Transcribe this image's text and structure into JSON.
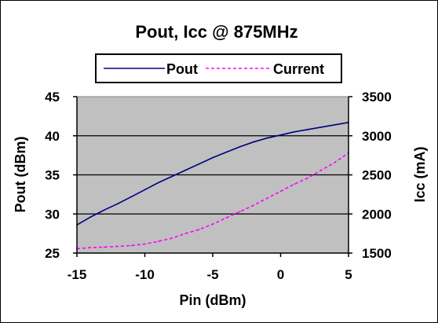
{
  "chart_data": {
    "type": "line",
    "title": "Pout, Icc @ 875MHz",
    "xlabel": "Pin  (dBm)",
    "ylabel": "Pout (dBm)",
    "y2label": "Icc (mA)",
    "xlim": [
      -15,
      5
    ],
    "ylim": [
      25,
      45
    ],
    "y2lim": [
      1500,
      3500
    ],
    "xticks": [
      "-15",
      "-10",
      "-5",
      "0",
      "5"
    ],
    "yticks": [
      "45",
      "40",
      "35",
      "30",
      "25"
    ],
    "y2ticks": [
      "3500",
      "3000",
      "2500",
      "2000",
      "1500"
    ],
    "grid": "horizontal",
    "legend_position": "top-center",
    "plot_background": "#c0c0c0",
    "series": [
      {
        "name": "Pout",
        "axis": "left",
        "color": "#000080",
        "style": "solid",
        "x": [
          -15,
          -14,
          -13,
          -12,
          -11,
          -10,
          -9,
          -8,
          -7,
          -6,
          -5,
          -4,
          -3,
          -2,
          -1,
          0,
          1,
          2,
          3,
          4,
          5
        ],
        "y": [
          28.6,
          29.6,
          30.5,
          31.3,
          32.2,
          33.1,
          34.0,
          34.8,
          35.6,
          36.4,
          37.2,
          37.9,
          38.6,
          39.2,
          39.7,
          40.1,
          40.5,
          40.8,
          41.1,
          41.4,
          41.7
        ]
      },
      {
        "name": "Current",
        "axis": "right",
        "color": "#ff00ff",
        "style": "dashed",
        "x": [
          -15,
          -14,
          -13,
          -12,
          -11,
          -10,
          -9,
          -8,
          -7,
          -6,
          -5,
          -4,
          -3,
          -2,
          -1,
          0,
          1,
          2,
          3,
          4,
          5
        ],
        "y": [
          1555,
          1570,
          1575,
          1585,
          1595,
          1615,
          1650,
          1690,
          1750,
          1800,
          1870,
          1950,
          2030,
          2110,
          2200,
          2290,
          2380,
          2460,
          2560,
          2660,
          2780
        ]
      }
    ]
  }
}
